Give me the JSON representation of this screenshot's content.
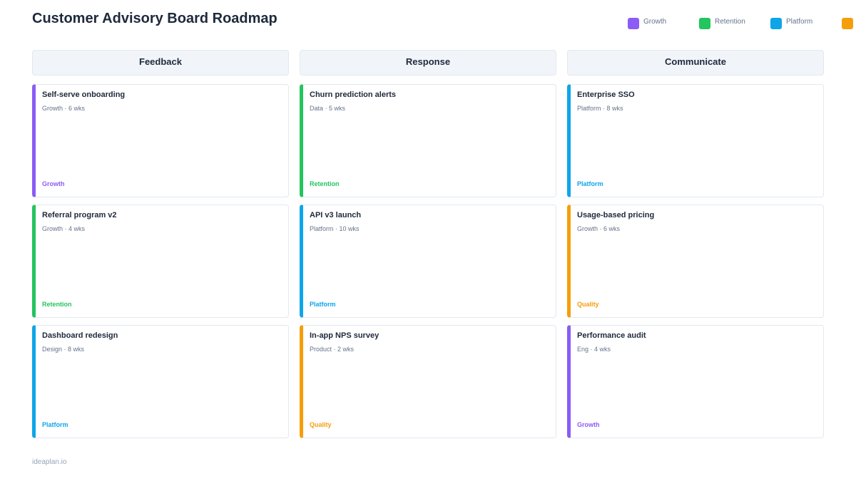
{
  "header": {
    "title": "Customer Advisory Board Roadmap"
  },
  "legend": [
    {
      "label": "Growth",
      "color": "#8b5cf6"
    },
    {
      "label": "Retention",
      "color": "#22c55e"
    },
    {
      "label": "Platform",
      "color": "#0ea5e9"
    },
    {
      "color": "#f59e0b"
    }
  ],
  "columns": [
    {
      "title": "Feedback",
      "cards": [
        {
          "title": "Self-serve onboarding",
          "meta": "Growth · 6 wks",
          "tag": "Growth",
          "color": "#8b5cf6"
        },
        {
          "title": "Referral program v2",
          "meta": "Growth · 4 wks",
          "tag": "Retention",
          "color": "#22c55e"
        },
        {
          "title": "Dashboard redesign",
          "meta": "Design · 8 wks",
          "tag": "Platform",
          "color": "#0ea5e9"
        }
      ]
    },
    {
      "title": "Response",
      "cards": [
        {
          "title": "Churn prediction alerts",
          "meta": "Data · 5 wks",
          "tag": "Retention",
          "color": "#22c55e"
        },
        {
          "title": "API v3 launch",
          "meta": "Platform · 10 wks",
          "tag": "Platform",
          "color": "#0ea5e9"
        },
        {
          "title": "In-app NPS survey",
          "meta": "Product · 2 wks",
          "tag": "Quality",
          "color": "#f59e0b"
        }
      ]
    },
    {
      "title": "Communicate",
      "cards": [
        {
          "title": "Enterprise SSO",
          "meta": "Platform · 8 wks",
          "tag": "Platform",
          "color": "#0ea5e9"
        },
        {
          "title": "Usage-based pricing",
          "meta": "Growth · 6 wks",
          "tag": "Quality",
          "color": "#f59e0b"
        },
        {
          "title": "Performance audit",
          "meta": "Eng · 4 wks",
          "tag": "Growth",
          "color": "#8b5cf6"
        }
      ]
    }
  ],
  "footer": {
    "text": "ideaplan.io"
  }
}
